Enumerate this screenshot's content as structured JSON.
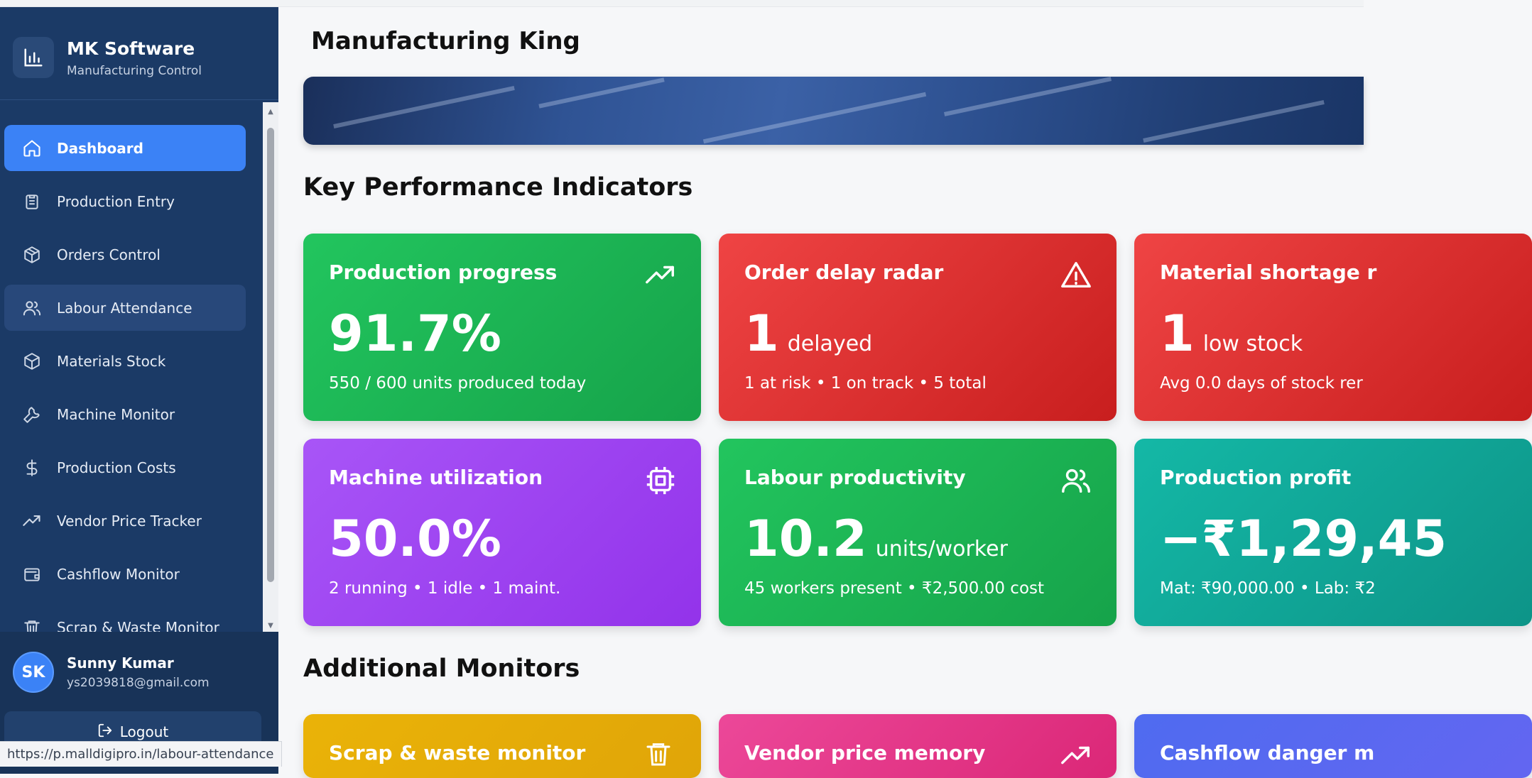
{
  "brand": {
    "title": "MK Software",
    "subtitle": "Manufacturing Control"
  },
  "sidebar": {
    "items": [
      {
        "label": "Dashboard",
        "icon": "home-icon",
        "active": true
      },
      {
        "label": "Production Entry",
        "icon": "clipboard-icon"
      },
      {
        "label": "Orders Control",
        "icon": "package-icon"
      },
      {
        "label": "Labour Attendance",
        "icon": "users-icon",
        "hover": true
      },
      {
        "label": "Materials Stock",
        "icon": "box-icon"
      },
      {
        "label": "Machine Monitor",
        "icon": "wrench-icon"
      },
      {
        "label": "Production Costs",
        "icon": "dollar-icon"
      },
      {
        "label": "Vendor Price Tracker",
        "icon": "trending-up-icon"
      },
      {
        "label": "Cashflow Monitor",
        "icon": "wallet-icon"
      },
      {
        "label": "Scrap & Waste Monitor",
        "icon": "trash-icon"
      }
    ]
  },
  "user": {
    "initials": "SK",
    "name": "Sunny Kumar",
    "email": "ys2039818@gmail.com",
    "logout_label": "Logout"
  },
  "status_url": "https://p.malldigipro.in/labour-attendance",
  "header": {
    "title": "Manufacturing King"
  },
  "kpi": {
    "title": "Key Performance Indicators",
    "cards": [
      {
        "title": "Production progress",
        "value": "91.7%",
        "unit": "",
        "sub": "550 / 600 units produced today",
        "color": "#22c55e",
        "icon": "trending-up-icon"
      },
      {
        "title": "Order delay radar",
        "value": "1",
        "unit": "delayed",
        "sub": "1 at risk • 1 on track • 5 total",
        "color": "#ef4444",
        "icon": "alert-triangle-icon"
      },
      {
        "title": "Material shortage r",
        "value": "1",
        "unit": "low stock",
        "sub": "Avg 0.0 days of stock rer",
        "color": "#ef4444",
        "icon": ""
      },
      {
        "title": "Machine utilization",
        "value": "50.0%",
        "unit": "",
        "sub": "2 running • 1 idle • 1 maint.",
        "color": "#a855f7",
        "icon": "cpu-icon"
      },
      {
        "title": "Labour productivity",
        "value": "10.2",
        "unit": "units/worker",
        "sub": "45 workers present • ₹2,500.00 cost",
        "color": "#22c55e",
        "icon": "users-icon"
      },
      {
        "title": "Production profit",
        "value": "−₹1,29,45",
        "unit": "",
        "sub": "Mat: ₹90,000.00 • Lab: ₹2",
        "color": "#14b8a6",
        "icon": ""
      }
    ]
  },
  "monitors": {
    "title": "Additional Monitors",
    "cards": [
      {
        "title": "Scrap & waste monitor",
        "color": "#eab308",
        "icon": "trash-icon"
      },
      {
        "title": "Vendor price memory",
        "color": "#ec4899",
        "icon": "trending-up-icon"
      },
      {
        "title": "Cashflow danger m",
        "color": "#4f6bf0",
        "icon": ""
      }
    ]
  }
}
